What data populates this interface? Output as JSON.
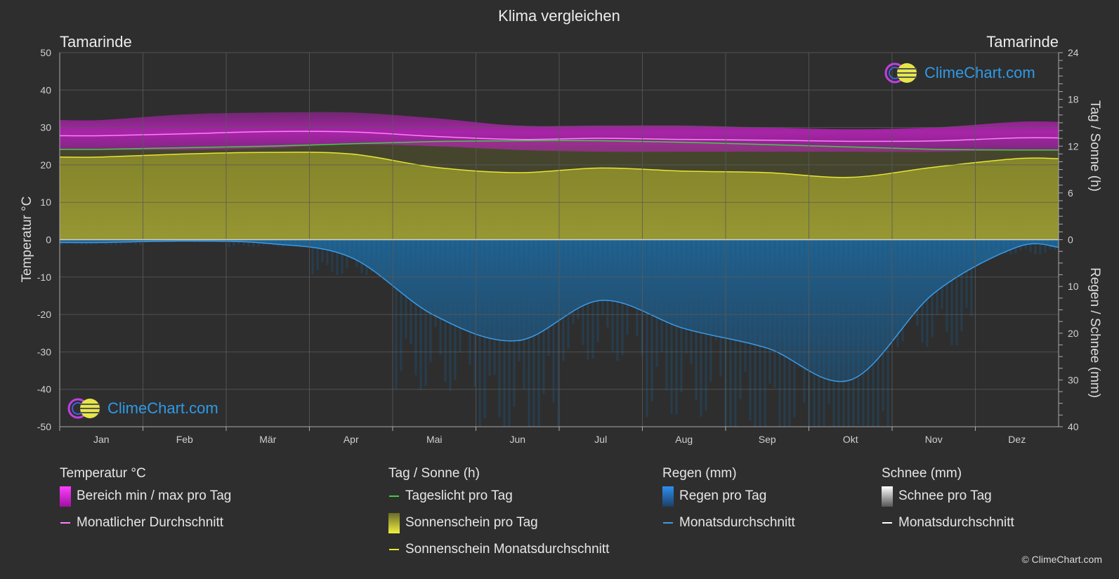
{
  "title": "Klima vergleichen",
  "location_left": "Tamarinde",
  "location_right": "Tamarinde",
  "logo_text": "ClimeChart.com",
  "copyright": "© ClimeChart.com",
  "colors": {
    "background": "#2e2e2e",
    "temp_range": "#d020d0",
    "temp_avg": "#ff80ff",
    "daylight": "#44cc44",
    "sunshine_fill": "#a3a32e",
    "sunshine_avg": "#e6e633",
    "rain_fill": "#1e6fa8",
    "rain_avg": "#3b9be8",
    "snow": "#ffffff",
    "grid": "#5a5a5a"
  },
  "legend": {
    "temperature": {
      "heading": "Temperatur °C",
      "items": [
        {
          "label": "Bereich min / max pro Tag",
          "icon": "magenta-range-swatch"
        },
        {
          "label": "Monatlicher Durchschnitt",
          "icon": "pink-line"
        }
      ]
    },
    "sun": {
      "heading": "Tag / Sonne (h)",
      "items": [
        {
          "label": "Tageslicht pro Tag",
          "icon": "green-line"
        },
        {
          "label": "Sonnenschein pro Tag",
          "icon": "yellow-gradient-swatch"
        },
        {
          "label": "Sonnenschein Monatsdurchschnitt",
          "icon": "yellow-line"
        }
      ]
    },
    "rain": {
      "heading": "Regen (mm)",
      "items": [
        {
          "label": "Regen pro Tag",
          "icon": "blue-gradient-swatch"
        },
        {
          "label": "Monatsdurchschnitt",
          "icon": "blue-line"
        }
      ]
    },
    "snow": {
      "heading": "Schnee (mm)",
      "items": [
        {
          "label": "Schnee pro Tag",
          "icon": "white-gradient-swatch"
        },
        {
          "label": "Monatsdurchschnitt",
          "icon": "white-line"
        }
      ]
    }
  },
  "chart_data": {
    "type": "area",
    "title": "Klima vergleichen",
    "categories": [
      "Jan",
      "Feb",
      "Mär",
      "Apr",
      "Mai",
      "Jun",
      "Jul",
      "Aug",
      "Sep",
      "Okt",
      "Nov",
      "Dez"
    ],
    "y_left": {
      "label": "Temperatur °C",
      "ticks": [
        50,
        40,
        30,
        20,
        10,
        0,
        -10,
        -20,
        -30,
        -40,
        -50
      ],
      "range": [
        -50,
        50
      ]
    },
    "y_right_top": {
      "label": "Tag / Sonne (h)",
      "ticks": [
        24,
        18,
        12,
        6,
        0
      ],
      "range": [
        0,
        24
      ]
    },
    "y_right_bottom": {
      "label": "Regen / Schnee (mm)",
      "ticks": [
        0,
        10,
        20,
        30,
        40
      ],
      "range": [
        0,
        40
      ]
    },
    "grid": true,
    "series": [
      {
        "name": "Bereich min / max pro Tag (max)",
        "unit": "°C",
        "values": [
          32,
          33.5,
          34,
          34,
          32.5,
          30.5,
          30.5,
          30.5,
          30,
          29.5,
          30,
          31.5
        ]
      },
      {
        "name": "Bereich min / max pro Tag (min)",
        "unit": "°C",
        "values": [
          24,
          24,
          24.5,
          25.5,
          25,
          24,
          23.5,
          23.5,
          23.5,
          23.5,
          23.5,
          24
        ]
      },
      {
        "name": "Monatlicher Durchschnitt",
        "unit": "°C",
        "values": [
          27.8,
          28.3,
          28.9,
          28.8,
          27.6,
          26.8,
          27.1,
          26.8,
          26.6,
          26.3,
          26.4,
          27.2
        ]
      },
      {
        "name": "Tageslicht pro Tag",
        "unit": "h",
        "values": [
          11.6,
          11.8,
          12.0,
          12.3,
          12.6,
          12.7,
          12.7,
          12.5,
          12.2,
          11.9,
          11.6,
          11.5
        ]
      },
      {
        "name": "Sonnenschein Monatsdurchschnitt",
        "unit": "h",
        "values": [
          10.6,
          11.0,
          11.2,
          11.0,
          9.3,
          8.6,
          9.2,
          8.8,
          8.6,
          8.0,
          9.3,
          10.4
        ]
      },
      {
        "name": "Regen Monatsdurchschnitt",
        "unit": "mm",
        "values": [
          0.6,
          0.3,
          0.8,
          3.8,
          16.2,
          21.6,
          13.0,
          19.0,
          23.2,
          30.0,
          11.5,
          1.6
        ]
      }
    ]
  }
}
